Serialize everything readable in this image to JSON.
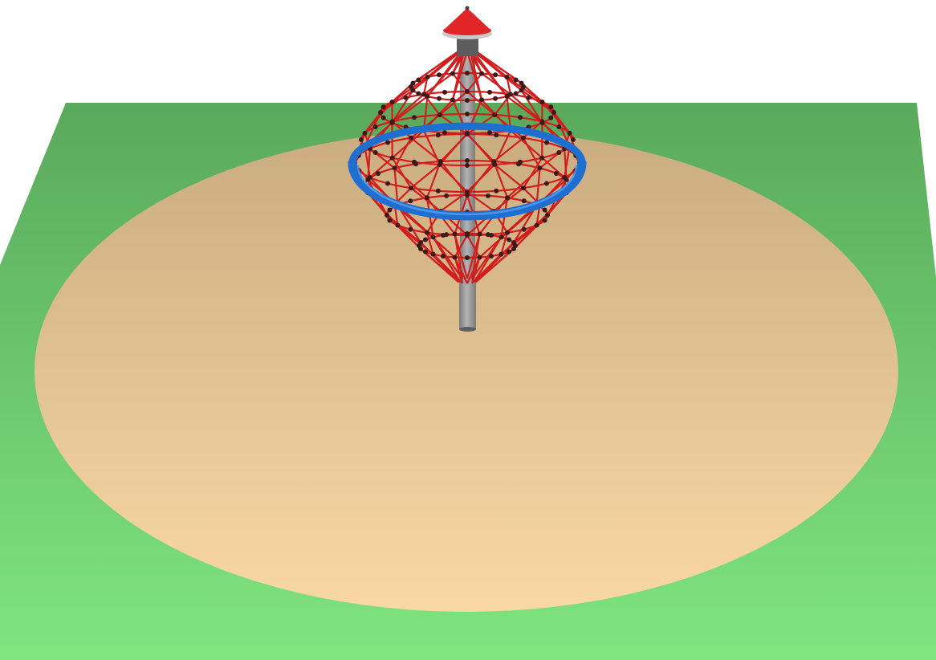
{
  "scene": {
    "subject": "rotating-cone-rope-net-play-equipment",
    "colors": {
      "background": "#ffffff",
      "grass_light": "#7fe57f",
      "grass_dark": "#5aa95c",
      "sand_light": "#f9d8a4",
      "sand_dark": "#c9ac80",
      "rope": "#d21d1d",
      "knot": "#3a1a1a",
      "ring": "#1f6fd1",
      "ring_highlight": "#5aa0f0",
      "pole": "#7b7b7b",
      "pole_highlight": "#b4b4b4",
      "cap": "#e02626",
      "cap_rim": "#c9c9c9"
    },
    "elements": {
      "ground": "grass-ground",
      "safety_surface": "sand-safety-area",
      "pole": "central-pole",
      "net": "rope-net",
      "ring": "blue-hoop-ring",
      "cap": "red-cone-cap"
    }
  }
}
